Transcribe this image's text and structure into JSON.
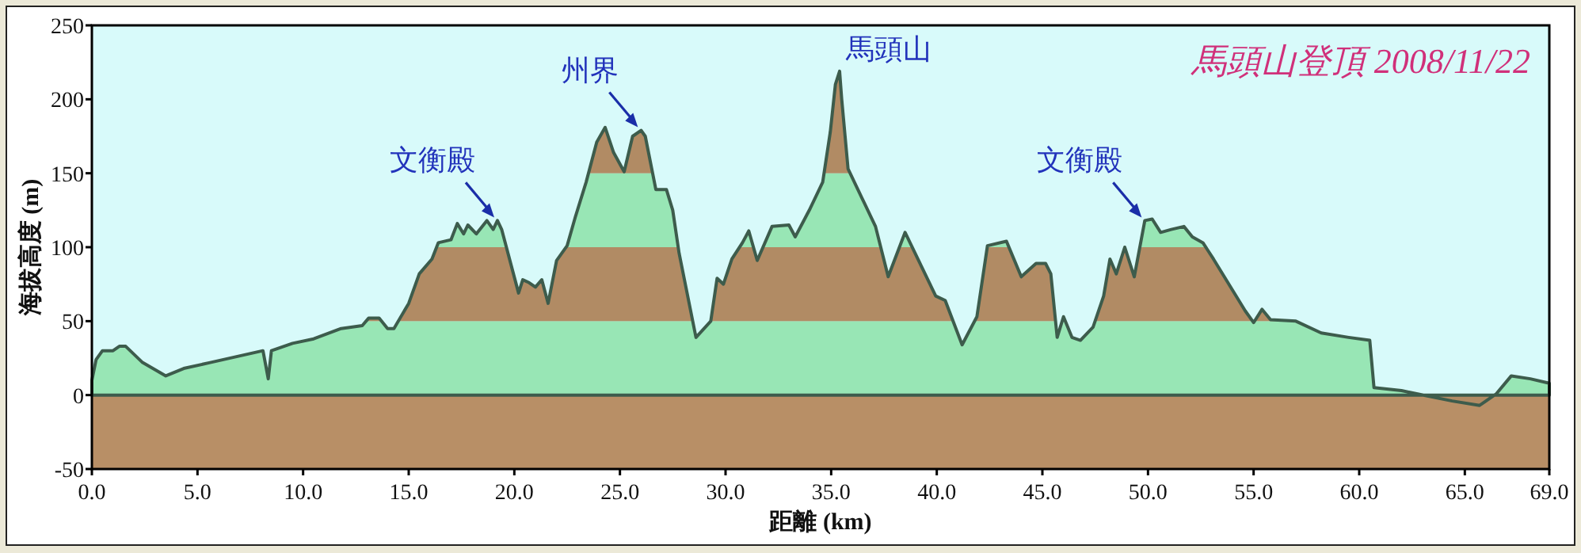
{
  "chart_data": {
    "type": "area",
    "title": "馬頭山登頂 2008/11/22",
    "xlabel": "距離 (km)",
    "ylabel": "海拔高度 (m)",
    "x": [
      0,
      0.2,
      0.5,
      1.0,
      1.3,
      1.6,
      2.4,
      3.5,
      4.35,
      5.6,
      8.1,
      8.35,
      8.5,
      9.5,
      10.5,
      11.8,
      12.8,
      13.1,
      13.6,
      14.0,
      14.3,
      15.0,
      15.5,
      16.1,
      16.4,
      17.0,
      17.3,
      17.6,
      17.8,
      18.2,
      18.7,
      19.0,
      19.2,
      19.4,
      20.2,
      20.4,
      20.7,
      21.0,
      21.3,
      21.6,
      22.0,
      22.5,
      22.9,
      23.4,
      23.9,
      24.3,
      24.7,
      25.2,
      25.6,
      26.0,
      26.2,
      26.7,
      27.2,
      27.5,
      27.8,
      28.6,
      29.3,
      29.6,
      29.9,
      30.3,
      30.8,
      31.1,
      31.5,
      32.2,
      33.0,
      33.3,
      34.0,
      34.6,
      34.96,
      35.2,
      35.4,
      35.5,
      35.8,
      36.5,
      37.1,
      37.7,
      38.5,
      38.97,
      39.95,
      40.4,
      41.2,
      41.9,
      42.4,
      43.3,
      44.0,
      44.7,
      45.15,
      45.4,
      45.7,
      46.0,
      46.4,
      46.8,
      47.4,
      47.9,
      48.2,
      48.5,
      48.9,
      49.35,
      49.85,
      50.2,
      50.6,
      51.1,
      51.7,
      52.1,
      52.6,
      53.1,
      54.6,
      55.0,
      55.4,
      55.8,
      57.0,
      58.2,
      59.5,
      60.5,
      60.7,
      62.0,
      64.4,
      65.7,
      66.5,
      67.2,
      68.1,
      69.0
    ],
    "values": [
      10,
      24,
      30,
      30,
      33,
      33,
      22,
      13,
      18,
      22,
      30,
      11,
      30,
      35,
      38,
      45,
      47,
      52,
      52,
      45,
      45,
      62,
      82,
      92,
      103,
      105,
      116,
      109,
      115,
      109,
      118,
      112,
      118,
      112,
      69,
      78,
      76,
      73,
      78,
      62,
      91,
      101,
      121,
      144,
      171,
      181,
      164,
      151,
      175,
      179,
      175,
      139,
      139,
      125,
      96,
      39,
      50,
      79,
      75,
      92,
      103,
      111,
      91,
      114,
      115,
      107,
      126,
      144,
      178,
      210,
      219,
      200,
      153,
      132,
      114,
      80,
      110,
      96,
      67,
      64,
      34,
      53,
      101,
      104,
      80,
      89,
      89,
      82,
      39,
      53,
      39,
      37,
      46,
      67,
      92,
      82,
      100,
      80,
      118,
      119,
      110,
      112,
      114,
      107,
      103,
      92,
      57,
      49,
      58,
      51,
      50,
      42,
      39,
      37,
      5,
      3,
      -4,
      -7,
      1,
      13,
      11,
      8
    ],
    "color": "#3d5c4c",
    "bands": [
      {
        "axis": "y",
        "from": -50,
        "to": 0,
        "color": "#b88f66"
      },
      {
        "axis": "y",
        "from": 0,
        "to": 50,
        "color": "#9ef0bd"
      },
      {
        "axis": "y",
        "from": 50,
        "to": 100,
        "color": "#b88f66"
      },
      {
        "axis": "y",
        "from": 100,
        "to": 150,
        "color": "#9ef0bd"
      },
      {
        "axis": "y",
        "from": 150,
        "to": 250,
        "color": "#b88f66"
      }
    ],
    "annotations": [
      {
        "text": "文衡殿",
        "x": 19.2,
        "y": 118
      },
      {
        "text": "州界",
        "x": 26.0,
        "y": 179
      },
      {
        "text": "馬頭山",
        "x": 35.4,
        "y": 219
      },
      {
        "text": "文衡殿",
        "x": 49.85,
        "y": 118
      }
    ],
    "xlim": [
      0,
      69
    ],
    "ylim": [
      -50,
      250
    ],
    "xticks": [
      {
        "value": 0,
        "label": "0.0"
      },
      {
        "value": 5,
        "label": "5.0"
      },
      {
        "value": 10,
        "label": "10.0"
      },
      {
        "value": 15,
        "label": "15.0"
      },
      {
        "value": 20,
        "label": "20.0"
      },
      {
        "value": 25,
        "label": "25.0"
      },
      {
        "value": 30,
        "label": "30.0"
      },
      {
        "value": 35,
        "label": "35.0"
      },
      {
        "value": 40,
        "label": "40.0"
      },
      {
        "value": 45,
        "label": "45.0"
      },
      {
        "value": 50,
        "label": "50.0"
      },
      {
        "value": 55,
        "label": "55.0"
      },
      {
        "value": 60,
        "label": "60.0"
      },
      {
        "value": 65,
        "label": "65.0"
      },
      {
        "value": 69,
        "label": "69.0"
      }
    ],
    "yticks": [
      -50,
      0,
      50,
      100,
      150,
      200,
      250
    ]
  }
}
